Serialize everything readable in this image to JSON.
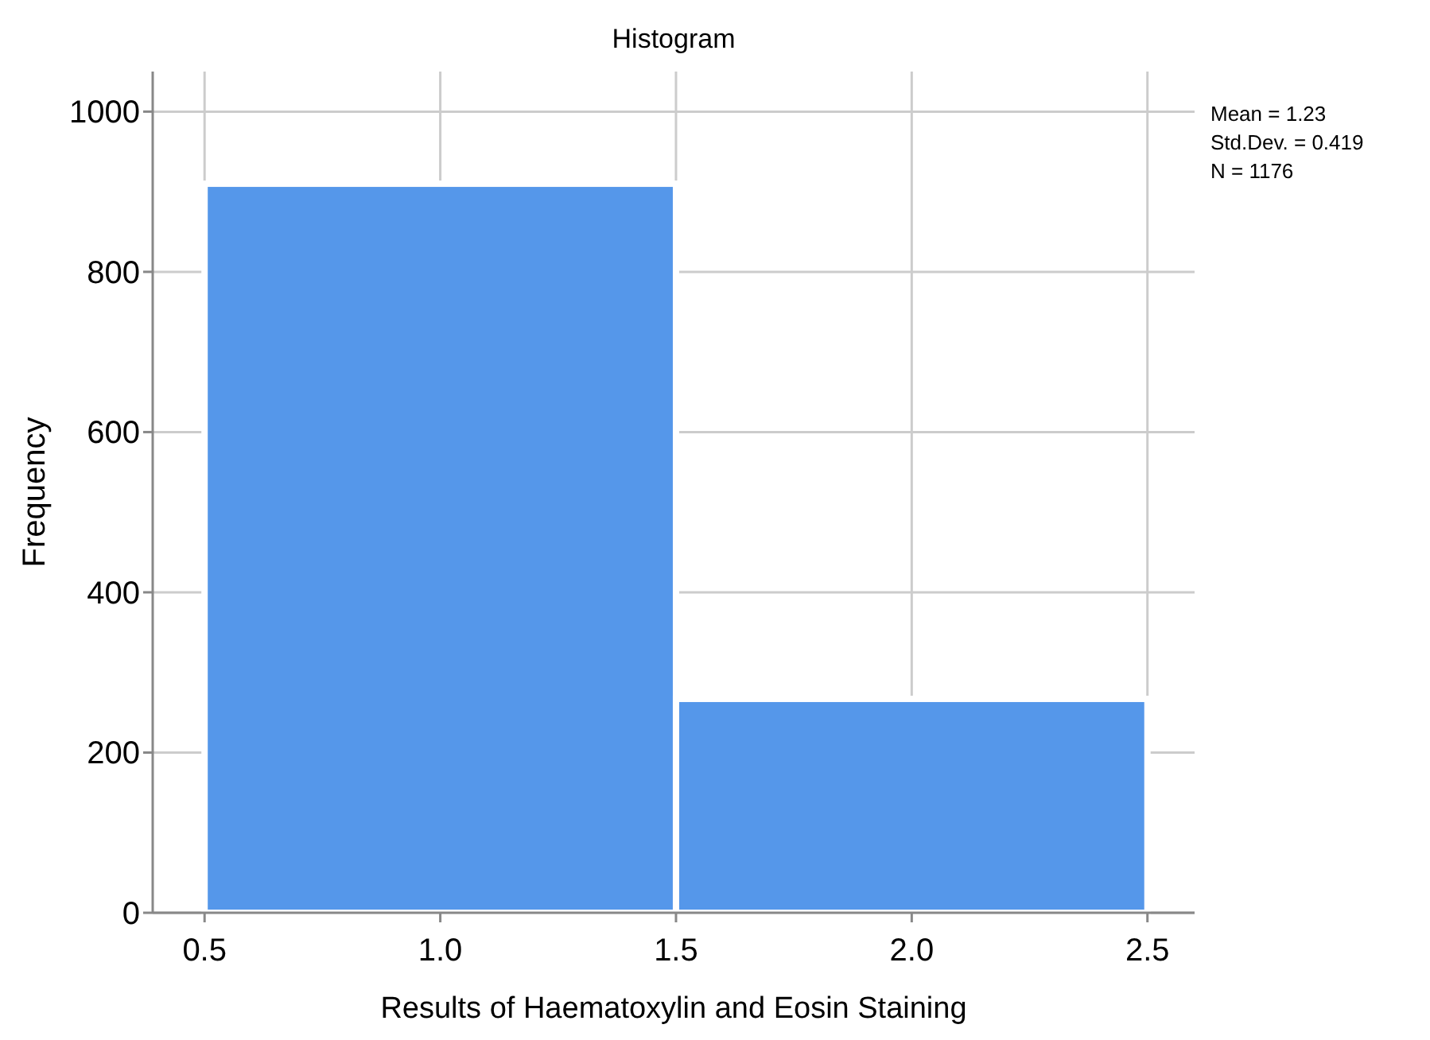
{
  "chart_data": {
    "type": "histogram",
    "title": "Histogram",
    "xlabel": "Results of Haematoxylin and Eosin Staining",
    "ylabel": "Frequency",
    "bins": [
      0.5,
      1.5,
      2.5
    ],
    "values": [
      910,
      267
    ],
    "color": "#5597ea",
    "xlim": [
      0.39,
      2.6
    ],
    "xticks": [
      {
        "value": 0.5,
        "label": "0.5"
      },
      {
        "value": 1,
        "label": "1.0"
      },
      {
        "value": 1.5,
        "label": "1.5"
      },
      {
        "value": 2,
        "label": "2.0"
      },
      {
        "value": 2.5,
        "label": "2.5"
      }
    ],
    "ylim": [
      0,
      1050
    ],
    "yticks": [
      0,
      200,
      400,
      600,
      800,
      1000
    ],
    "grid": true,
    "annotations": [
      "Mean = 1.23",
      "Std.Dev. = 0.419",
      "N = 1176"
    ]
  }
}
